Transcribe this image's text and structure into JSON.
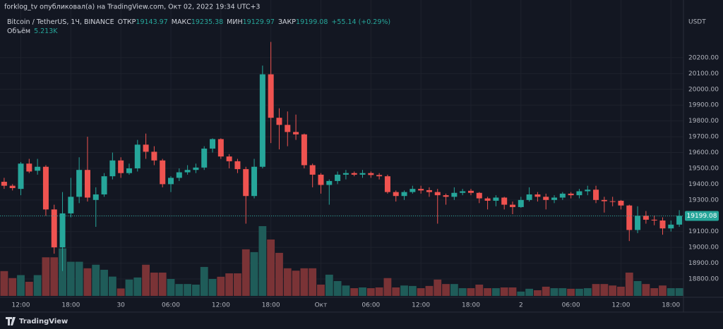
{
  "header": {
    "publisher": "forklog_tv опубликовал(а) на TradingView.com, Окт 02, 2022 19:34 UTC+3",
    "symbol": "Bitcoin / TetherUS, 1Ч, BINANCE",
    "open_label": "ОТКР",
    "high_label": "МАКС",
    "low_label": "МИН",
    "close_label": "ЗАКР",
    "change": "+55.14 (+0.29%)",
    "volume_name": "Объём",
    "volume_value": "5.213K",
    "brand": "TradingView"
  },
  "chart_data": {
    "type": "candlestick",
    "y_axis_label": "USDT",
    "up_color": "#26a69a",
    "down_color": "#ef5350",
    "up_volume_color": "#1f5c59",
    "down_volume_color": "#7a3336",
    "grid": true,
    "ylim": [
      18693,
      20485
    ],
    "yticks": [
      {
        "value": 18800,
        "label": "18800.00"
      },
      {
        "value": 18900,
        "label": "18900.00"
      },
      {
        "value": 19000,
        "label": "19000.00"
      },
      {
        "value": 19100,
        "label": "19100.00"
      },
      {
        "value": 19200,
        "label": "19200.00"
      },
      {
        "value": 19300,
        "label": "19300.00"
      },
      {
        "value": 19400,
        "label": "19400.00"
      },
      {
        "value": 19500,
        "label": "19500.00"
      },
      {
        "value": 19600,
        "label": "19600.00"
      },
      {
        "value": 19700,
        "label": "19700.00"
      },
      {
        "value": 19800,
        "label": "19800.00"
      },
      {
        "value": 19900,
        "label": "19900.00"
      },
      {
        "value": 20000,
        "label": "20000.00"
      },
      {
        "value": 20100,
        "label": "20100.00"
      },
      {
        "value": 20200,
        "label": "20200.00"
      }
    ],
    "categories": [
      null,
      null,
      "12:00",
      null,
      null,
      null,
      null,
      null,
      "18:00",
      null,
      null,
      null,
      null,
      null,
      "30",
      null,
      null,
      null,
      null,
      null,
      "06:00",
      null,
      null,
      null,
      null,
      null,
      "12:00",
      null,
      null,
      null,
      null,
      null,
      "18:00",
      null,
      null,
      null,
      null,
      null,
      "Окт",
      null,
      null,
      null,
      null,
      null,
      "06:00",
      null,
      null,
      null,
      null,
      null,
      "12:00",
      null,
      null,
      null,
      null,
      null,
      "18:00",
      null,
      null,
      null,
      null,
      null,
      "2",
      null,
      null,
      null,
      null,
      null,
      "06:00",
      null,
      null,
      null,
      null,
      null,
      "12:00",
      null,
      null,
      null,
      null,
      null,
      "18:00",
      null
    ],
    "open": [
      19415,
      19390,
      19370,
      19530,
      19485,
      19510,
      19240,
      19000,
      19215,
      19320,
      19490,
      19300,
      19335,
      19450,
      19550,
      19470,
      19500,
      19650,
      19605,
      19550,
      19400,
      19440,
      19475,
      19490,
      19505,
      19625,
      19685,
      19575,
      19545,
      19495,
      19325,
      19510,
      20095,
      19820,
      19775,
      19730,
      19715,
      19520,
      19460,
      19395,
      19420,
      19460,
      19470,
      19460,
      19470,
      19458,
      19450,
      19350,
      19325,
      19350,
      19370,
      19362,
      19350,
      19330,
      19320,
      19345,
      19358,
      19345,
      19310,
      19295,
      19315,
      19270,
      19255,
      19300,
      19335,
      19320,
      19300,
      19315,
      19340,
      19330,
      19355,
      19365,
      19300,
      19292,
      19295,
      19265,
      19110,
      19200,
      19175,
      19170,
      19120,
      19143.97
    ],
    "high": [
      19440,
      19400,
      19540,
      19560,
      19560,
      19520,
      19270,
      19350,
      19440,
      19570,
      19700,
      19380,
      19470,
      19600,
      19570,
      19530,
      19680,
      19720,
      19640,
      19560,
      19450,
      19500,
      19520,
      19530,
      19640,
      19690,
      19690,
      19590,
      19560,
      19510,
      19560,
      20150,
      20300,
      19880,
      19860,
      19840,
      19720,
      19530,
      19470,
      19430,
      19480,
      19490,
      19480,
      19490,
      19480,
      19470,
      19460,
      19360,
      19360,
      19390,
      19390,
      19380,
      19370,
      19340,
      19380,
      19370,
      19370,
      19350,
      19320,
      19330,
      19320,
      19290,
      19320,
      19380,
      19350,
      19340,
      19330,
      19350,
      19350,
      19370,
      19390,
      19390,
      19320,
      19320,
      19300,
      19270,
      19260,
      19230,
      19200,
      19190,
      19170,
      19235.38
    ],
    "low": [
      19370,
      19360,
      19330,
      19470,
      19460,
      19200,
      18960,
      18850,
      19190,
      19280,
      19290,
      19130,
      19320,
      19430,
      19440,
      19460,
      19480,
      19560,
      19520,
      19380,
      19350,
      19420,
      19460,
      19470,
      19490,
      19600,
      19560,
      19500,
      19470,
      19150,
      19310,
      19500,
      19660,
      19620,
      19640,
      19680,
      19500,
      19380,
      19340,
      19270,
      19400,
      19430,
      19450,
      19440,
      19440,
      19430,
      19340,
      19290,
      19300,
      19340,
      19340,
      19320,
      19150,
      19270,
      19300,
      19330,
      19330,
      19280,
      19240,
      19260,
      19240,
      19210,
      19250,
      19290,
      19290,
      19240,
      19280,
      19300,
      19310,
      19310,
      19330,
      19280,
      19220,
      19260,
      19240,
      19040,
      19090,
      19150,
      19140,
      19080,
      19100,
      19129.97
    ],
    "close": [
      19390,
      19375,
      19530,
      19480,
      19510,
      19240,
      19000,
      19215,
      19320,
      19490,
      19315,
      19335,
      19450,
      19550,
      19470,
      19500,
      19650,
      19605,
      19550,
      19400,
      19440,
      19475,
      19490,
      19505,
      19625,
      19685,
      19575,
      19545,
      19495,
      19325,
      19510,
      20095,
      19820,
      19775,
      19730,
      19715,
      19520,
      19460,
      19395,
      19420,
      19460,
      19470,
      19460,
      19470,
      19458,
      19450,
      19350,
      19325,
      19350,
      19370,
      19360,
      19350,
      19330,
      19320,
      19345,
      19355,
      19345,
      19310,
      19295,
      19315,
      19270,
      19255,
      19300,
      19335,
      19320,
      19300,
      19315,
      19340,
      19330,
      19355,
      19365,
      19300,
      19292,
      19290,
      19265,
      19110,
      19200,
      19175,
      19170,
      19120,
      19143.94,
      19199.08
    ],
    "volume": [
      16.7,
      12,
      14,
      9.5,
      14,
      26,
      26,
      32,
      23,
      23,
      18.6,
      21,
      17.6,
      13,
      5,
      11,
      12.4,
      21,
      15.7,
      15.7,
      11.4,
      8,
      8,
      7.6,
      19.5,
      11.4,
      12.9,
      15.2,
      15.2,
      31.4,
      29.5,
      47,
      38,
      29,
      18.6,
      17,
      18.6,
      18.6,
      7.6,
      14.3,
      10,
      7,
      5.2,
      5.7,
      5.2,
      5.7,
      12,
      5.7,
      7,
      6.7,
      5.2,
      6.7,
      11,
      8,
      8,
      5.2,
      5.2,
      7.6,
      5.2,
      5.2,
      5.7,
      5.7,
      2.9,
      4.8,
      3.8,
      6.2,
      5.2,
      5.2,
      4.8,
      4.8,
      5.2,
      8,
      8,
      7,
      6.2,
      15.7,
      10,
      8,
      5.2,
      7,
      5.2,
      5.213
    ]
  }
}
